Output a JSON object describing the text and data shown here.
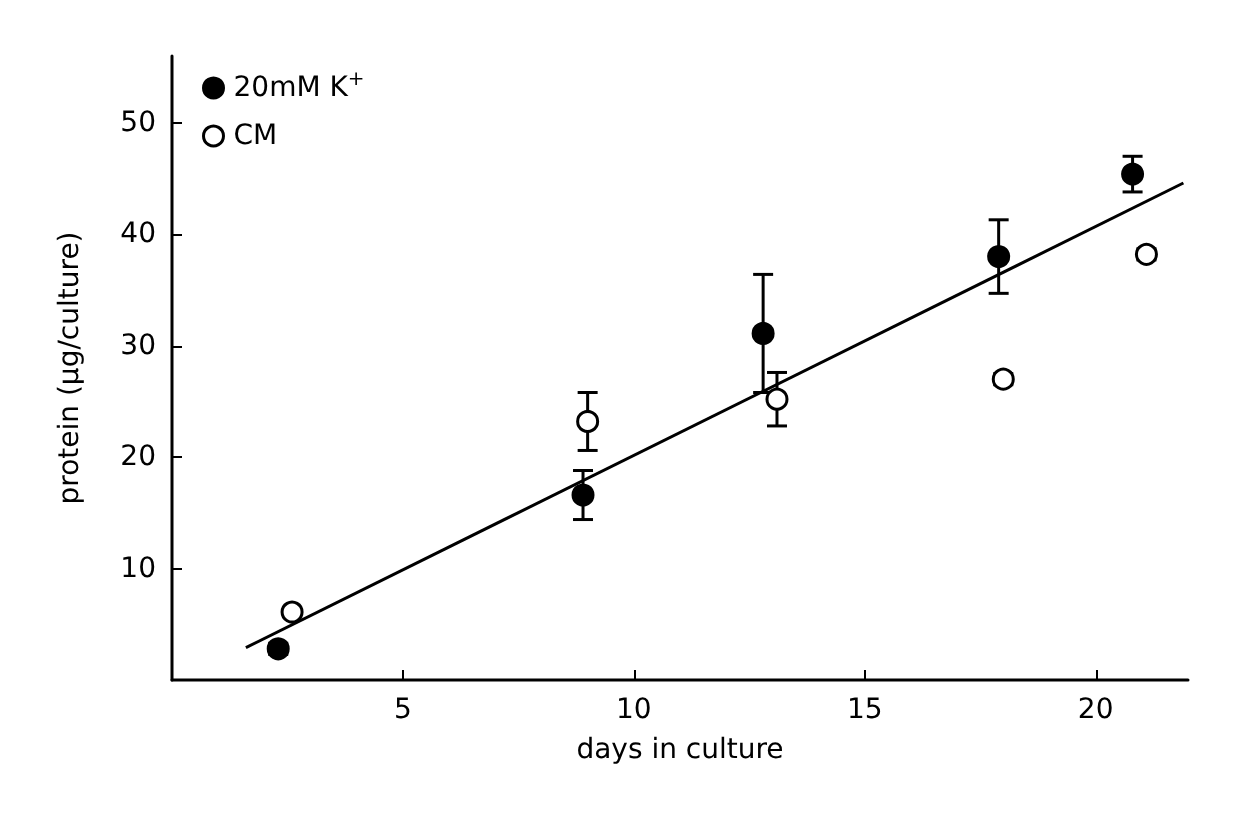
{
  "chart_data": {
    "type": "scatter",
    "xlabel": "days in culture",
    "ylabel": "protein (μg/culture)",
    "xlim": [
      0,
      22
    ],
    "xticks": [
      5,
      10,
      15,
      20
    ],
    "ylim": [
      0,
      56
    ],
    "yticks": [
      10,
      20,
      30,
      40,
      50
    ],
    "grid": false,
    "legend": "top left",
    "marker": "circle",
    "series": [
      {
        "name": "20mM K$^{+}$",
        "color": "#000000",
        "x": [
          2.3,
          8.9,
          12.8,
          17.9,
          20.8
        ],
        "values": [
          2.8,
          16.6,
          31.1,
          38.0,
          45.4
        ],
        "errors": [
          0.5,
          2.2,
          5.3,
          3.3,
          1.6
        ]
      },
      {
        "name": "CM",
        "color": "#ffffff",
        "x": [
          2.6,
          9.0,
          13.1,
          18.0,
          21.1
        ],
        "values": [
          6.1,
          23.2,
          25.2,
          27.0,
          38.2
        ],
        "errors": [
          null,
          2.6,
          2.4,
          0.5,
          0.5
        ]
      },
      {
        "type": "line",
        "color": "#000000",
        "marker": "none",
        "x": [
          1.6,
          21.9
        ],
        "values": [
          2.9,
          44.6
        ]
      }
    ]
  }
}
